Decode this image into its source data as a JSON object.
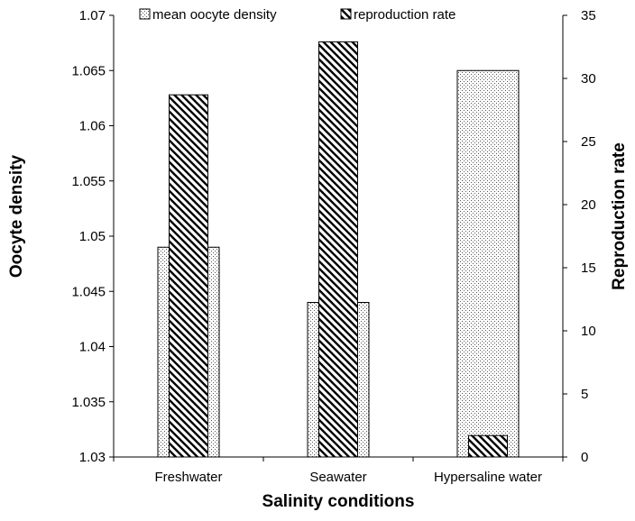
{
  "chart_data": {
    "type": "bar",
    "categories": [
      "Freshwater",
      "Seawater",
      "Hypersaline water"
    ],
    "series": [
      {
        "name": "mean oocyte density",
        "axis": "left",
        "pattern": "dots",
        "values": [
          1.049,
          1.044,
          1.065
        ]
      },
      {
        "name": "reproduction rate",
        "axis": "right",
        "pattern": "diagonal-hatch",
        "values": [
          28.7,
          32.9,
          1.7
        ]
      }
    ],
    "xlabel": "Salinity conditions",
    "ylabel": "Oocyte density",
    "y2label": "Reproduction rate",
    "ylim": [
      1.03,
      1.07
    ],
    "y2lim": [
      0,
      35
    ],
    "yticks": [
      "1.03",
      "1.035",
      "1.04",
      "1.045",
      "1.05",
      "1.055",
      "1.06",
      "1.065",
      "1.07"
    ],
    "y2ticks": [
      "0",
      "5",
      "10",
      "15",
      "20",
      "25",
      "30",
      "35"
    ],
    "grid": false,
    "legend_position": "top"
  }
}
